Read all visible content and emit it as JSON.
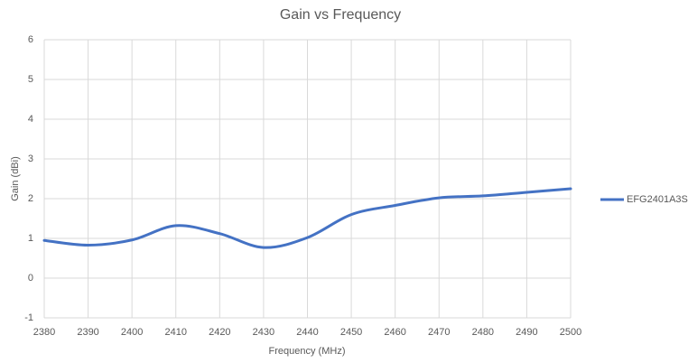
{
  "chart_data": {
    "type": "line",
    "title": "Gain vs Frequency",
    "x_label": "Frequency (MHz)",
    "y_label": "Gain (dBi)",
    "x": [
      2380,
      2390,
      2400,
      2410,
      2420,
      2430,
      2440,
      2450,
      2460,
      2470,
      2480,
      2490,
      2500
    ],
    "series": [
      {
        "name": "EFG2401A3S",
        "color": "#4472c4",
        "values": [
          0.95,
          0.83,
          0.96,
          1.32,
          1.12,
          0.77,
          1.02,
          1.6,
          1.83,
          2.02,
          2.07,
          2.16,
          2.25
        ]
      }
    ],
    "xlim": [
      2380,
      2500
    ],
    "xticks": [
      2380,
      2390,
      2400,
      2410,
      2420,
      2430,
      2440,
      2450,
      2460,
      2470,
      2480,
      2490,
      2500
    ],
    "ylim": [
      -1,
      6
    ],
    "yticks": [
      -1,
      0,
      1,
      2,
      3,
      4,
      5,
      6
    ],
    "grid": true,
    "smooth": true,
    "legend": "right"
  }
}
